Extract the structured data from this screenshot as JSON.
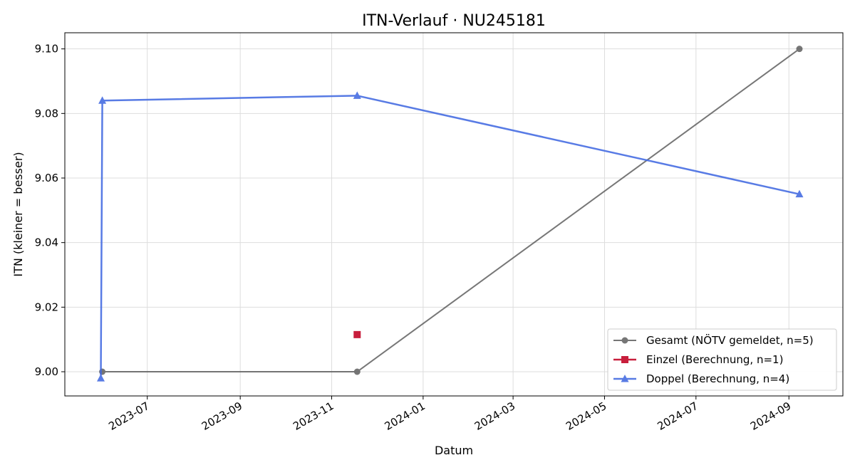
{
  "chart_data": {
    "type": "line",
    "title": "ITN-Verlauf · NU245181",
    "xlabel": "Datum",
    "ylabel": "ITN  (kleiner = besser)",
    "x_type": "date",
    "xlim": [
      "2023-05-07",
      "2024-10-07"
    ],
    "ylim": [
      8.9925,
      9.105
    ],
    "x_ticks": [
      "2023-07-01",
      "2023-09-01",
      "2023-11-01",
      "2024-01-01",
      "2024-03-01",
      "2024-05-01",
      "2024-07-01",
      "2024-09-01"
    ],
    "x_tick_labels": [
      "2023-07",
      "2023-09",
      "2023-11",
      "2024-01",
      "2024-03",
      "2024-05",
      "2024-07",
      "2024-09"
    ],
    "y_ticks": [
      9.0,
      9.02,
      9.04,
      9.06,
      9.08,
      9.1
    ],
    "y_tick_labels": [
      "9.00",
      "9.02",
      "9.04",
      "9.06",
      "9.08",
      "9.10"
    ],
    "grid": true,
    "legend_position": "lower-right",
    "series": [
      {
        "name": "Gesamt (NÖTV gemeldet, n=5)",
        "color": "#555555",
        "marker": "circle",
        "points": [
          {
            "x": "2023-06-01",
            "y": 9.0
          },
          {
            "x": "2023-11-18",
            "y": 9.0
          },
          {
            "x": "2024-09-08",
            "y": 9.1
          }
        ]
      },
      {
        "name": "Einzel (Berechnung, n=1)",
        "color": "#c81e3c",
        "marker": "square",
        "points": [
          {
            "x": "2023-11-18",
            "y": 9.0115
          }
        ]
      },
      {
        "name": "Doppel (Berechnung, n=4)",
        "color": "#4169e1",
        "marker": "triangle",
        "points": [
          {
            "x": "2023-05-31",
            "y": 8.998
          },
          {
            "x": "2023-06-01",
            "y": 9.084
          },
          {
            "x": "2023-11-18",
            "y": 9.0855
          },
          {
            "x": "2024-09-08",
            "y": 9.055
          }
        ]
      }
    ]
  }
}
